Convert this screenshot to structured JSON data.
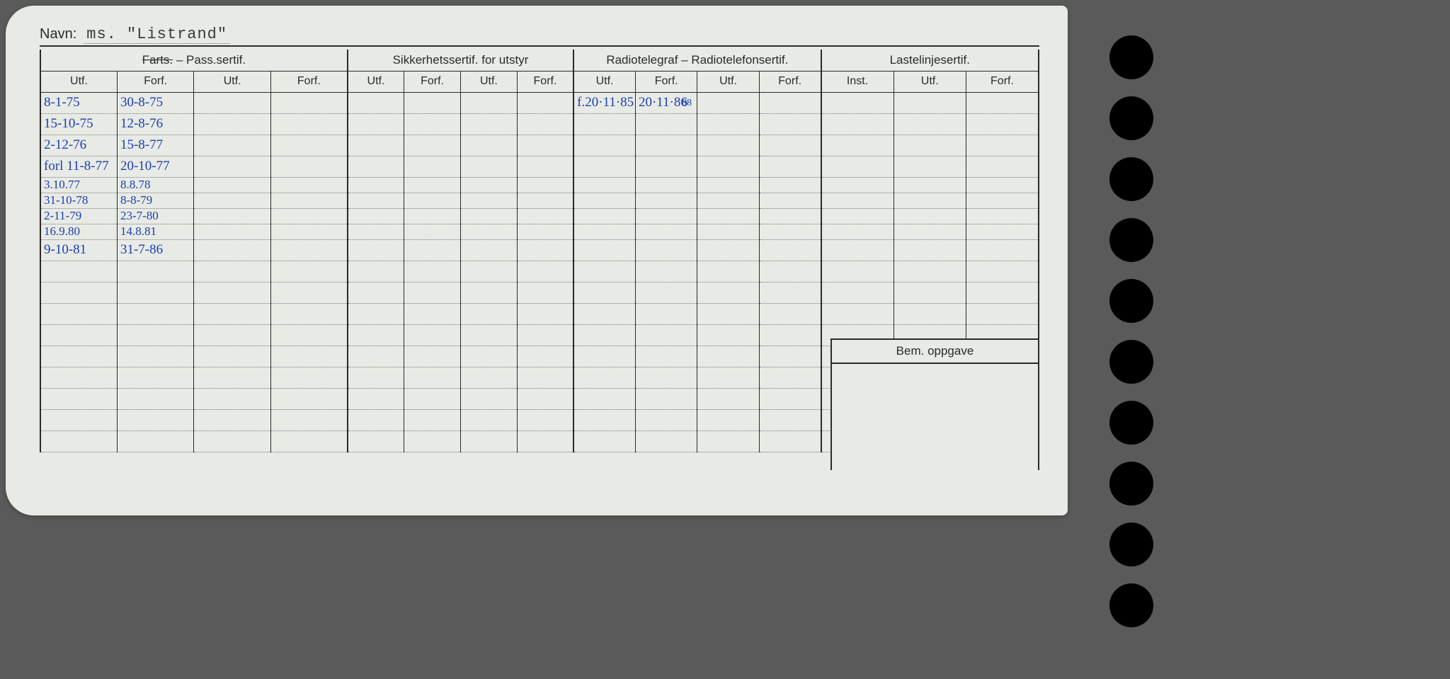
{
  "colors": {
    "card_bg": "#e8eae5",
    "ink": "#2b2b2b",
    "pen_blue": "#1a3fb0",
    "dotted": "#7a7a7a",
    "page_bg": "#5a5a5a",
    "punch": "#000000"
  },
  "navn": {
    "label": "Navn:",
    "value": "ms. \"Listrand\""
  },
  "sections": {
    "pass": {
      "title_strike": "Farts.",
      "title_rest": " – Pass.sertif.",
      "sub": [
        "Utf.",
        "Forf.",
        "Utf.",
        "Forf."
      ]
    },
    "sikk": {
      "title": "Sikkerhetssertif. for utstyr",
      "sub": [
        "Utf.",
        "Forf.",
        "Utf.",
        "Forf."
      ]
    },
    "radio": {
      "title": "Radiotelegraf – Radiotelefonsertif.",
      "sub": [
        "Utf.",
        "Forf.",
        "Utf.",
        "Forf."
      ]
    },
    "last": {
      "title": "Lastelinjesertif.",
      "sub": [
        "Inst.",
        "Utf.",
        "Forf."
      ]
    }
  },
  "radio_annotation": "88",
  "rows": [
    {
      "pass_utf": "8-1-75",
      "pass_forf": "30-8-75",
      "radio_utf": "f.20·11·85",
      "radio_forf": "20·11·86"
    },
    {
      "pass_utf": "15-10-75",
      "pass_forf": "12-8-76"
    },
    {
      "pass_utf": "2-12-76",
      "pass_forf": "15-8-77"
    },
    {
      "pass_utf": "forl 11-8-77",
      "pass_forf": "20-10-77"
    },
    {
      "tight": true,
      "pass_utf": "3.10.77",
      "pass_forf": "8.8.78"
    },
    {
      "tight": true,
      "pass_utf": "31-10-78",
      "pass_forf": "8-8-79"
    },
    {
      "tight": true,
      "pass_utf": "2-11-79",
      "pass_forf": "23-7-80"
    },
    {
      "tight": true,
      "pass_utf": "16.9.80",
      "pass_forf": "14.8.81"
    },
    {
      "pass_utf": "9-10-81",
      "pass_forf": "31-7-86"
    },
    {},
    {},
    {},
    {},
    {},
    {},
    {},
    {},
    {}
  ],
  "bem": {
    "label": "Bem. oppgave"
  },
  "punch_count": 10
}
